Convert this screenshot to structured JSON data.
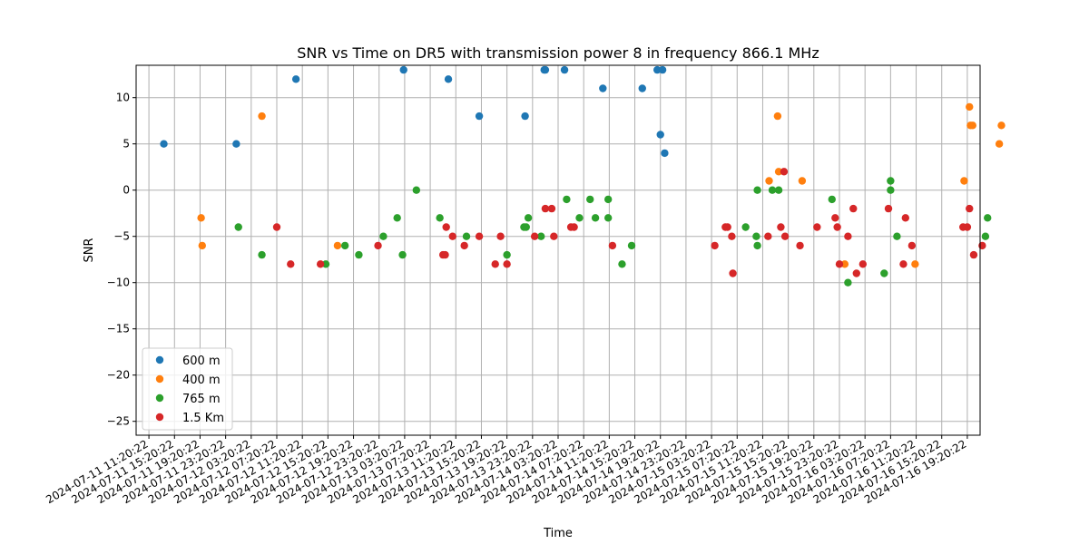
{
  "chart_data": {
    "type": "scatter",
    "title": "SNR vs Time on DR5 with transmission power 8 in frequency 866.1 MHz",
    "xlabel": "Time",
    "ylabel": "SNR",
    "ylim": [
      -26.5,
      13.5
    ],
    "yticks": [
      10,
      5,
      0,
      -5,
      -10,
      -15,
      -20,
      -25
    ],
    "xlim": [
      "2024-07-11 09:20",
      "2024-07-16 21:20"
    ],
    "xtick_labels": [
      "2024-07-11 11:20:22",
      "2024-07-11 15:20:22",
      "2024-07-11 19:20:22",
      "2024-07-11 23:20:22",
      "2024-07-12 03:20:22",
      "2024-07-12 07:20:22",
      "2024-07-12 11:20:22",
      "2024-07-12 15:20:22",
      "2024-07-12 19:20:22",
      "2024-07-12 23:20:22",
      "2024-07-13 03:20:22",
      "2024-07-13 07:20:22",
      "2024-07-13 11:20:22",
      "2024-07-13 15:20:22",
      "2024-07-13 19:20:22",
      "2024-07-13 23:20:22",
      "2024-07-14 03:20:22",
      "2024-07-14 07:20:22",
      "2024-07-14 11:20:22",
      "2024-07-14 15:20:22",
      "2024-07-14 19:20:22",
      "2024-07-14 23:20:22",
      "2024-07-15 03:20:22",
      "2024-07-15 07:20:22",
      "2024-07-15 11:20:22",
      "2024-07-15 15:20:22",
      "2024-07-15 19:20:22",
      "2024-07-15 23:20:22",
      "2024-07-16 03:20:22",
      "2024-07-16 07:20:22",
      "2024-07-16 11:20:22",
      "2024-07-16 15:20:22",
      "2024-07-16 19:20:22"
    ],
    "grid": true,
    "legend_position": "lower-left",
    "series": [
      {
        "name": "600 m",
        "color": "#1f77b4",
        "points": [
          {
            "x": "2024-07-11 13:40",
            "y": 5
          },
          {
            "x": "2024-07-12 01:00",
            "y": 5
          },
          {
            "x": "2024-07-12 10:20",
            "y": 12
          },
          {
            "x": "2024-07-12 27:10",
            "y": 13
          },
          {
            "x": "2024-07-13 10:10",
            "y": 12
          },
          {
            "x": "2024-07-13 15:00",
            "y": 8
          },
          {
            "x": "2024-07-13 22:10",
            "y": 8
          },
          {
            "x": "2024-07-14 01:10",
            "y": 13
          },
          {
            "x": "2024-07-14 01:20",
            "y": 13
          },
          {
            "x": "2024-07-14 04:20",
            "y": 13
          },
          {
            "x": "2024-07-14 10:20",
            "y": 11
          },
          {
            "x": "2024-07-14 16:30",
            "y": 11
          },
          {
            "x": "2024-07-14 18:50",
            "y": 13
          },
          {
            "x": "2024-07-14 19:40",
            "y": 13
          },
          {
            "x": "2024-07-14 19:20",
            "y": 6
          },
          {
            "x": "2024-07-14 20:00",
            "y": 4
          }
        ]
      },
      {
        "name": "400 m",
        "color": "#ff7f0e",
        "points": [
          {
            "x": "2024-07-11 19:30",
            "y": -3
          },
          {
            "x": "2024-07-11 19:40",
            "y": -6
          },
          {
            "x": "2024-07-12 05:00",
            "y": 8
          },
          {
            "x": "2024-07-12 16:50",
            "y": -6
          },
          {
            "x": "2024-07-15 12:20",
            "y": 1
          },
          {
            "x": "2024-07-15 13:40",
            "y": 8
          },
          {
            "x": "2024-07-15 13:50",
            "y": 2
          },
          {
            "x": "2024-07-15 17:30",
            "y": 1
          },
          {
            "x": "2024-07-16 00:10",
            "y": -8
          },
          {
            "x": "2024-07-16 11:10",
            "y": -8
          },
          {
            "x": "2024-07-16 18:50",
            "y": 1
          },
          {
            "x": "2024-07-16 19:50",
            "y": 7
          },
          {
            "x": "2024-07-16 19:40",
            "y": 9
          },
          {
            "x": "2024-07-16 20:10",
            "y": 7
          },
          {
            "x": "2024-07-17 00:20",
            "y": 5
          },
          {
            "x": "2024-07-17 00:40",
            "y": 7
          }
        ]
      },
      {
        "name": "765 m",
        "color": "#2ca02c",
        "points": [
          {
            "x": "2024-07-12 01:20",
            "y": -4
          },
          {
            "x": "2024-07-12 05:00",
            "y": -7
          },
          {
            "x": "2024-07-12 15:00",
            "y": -8
          },
          {
            "x": "2024-07-12 18:00",
            "y": -6
          },
          {
            "x": "2024-07-12 20:10",
            "y": -7
          },
          {
            "x": "2024-07-13 00:00",
            "y": -5
          },
          {
            "x": "2024-07-13 02:10",
            "y": -3
          },
          {
            "x": "2024-07-13 03:00",
            "y": -7
          },
          {
            "x": "2024-07-13 05:10",
            "y": 0
          },
          {
            "x": "2024-07-13 08:50",
            "y": -3
          },
          {
            "x": "2024-07-13 13:00",
            "y": -5
          },
          {
            "x": "2024-07-13 19:20",
            "y": -7
          },
          {
            "x": "2024-07-13 22:00",
            "y": -4
          },
          {
            "x": "2024-07-13 22:20",
            "y": -4
          },
          {
            "x": "2024-07-13 22:40",
            "y": -3
          },
          {
            "x": "2024-07-14 00:40",
            "y": -5
          },
          {
            "x": "2024-07-14 04:40",
            "y": -1
          },
          {
            "x": "2024-07-14 06:40",
            "y": -3
          },
          {
            "x": "2024-07-14 08:20",
            "y": -1
          },
          {
            "x": "2024-07-14 09:10",
            "y": -3
          },
          {
            "x": "2024-07-14 11:10",
            "y": -1
          },
          {
            "x": "2024-07-14 11:10",
            "y": -3
          },
          {
            "x": "2024-07-14 13:20",
            "y": -8
          },
          {
            "x": "2024-07-14 14:50",
            "y": -6
          },
          {
            "x": "2024-07-15 08:40",
            "y": -4
          },
          {
            "x": "2024-07-15 10:30",
            "y": 0
          },
          {
            "x": "2024-07-15 10:20",
            "y": -5
          },
          {
            "x": "2024-07-15 10:30",
            "y": -6
          },
          {
            "x": "2024-07-15 12:50",
            "y": 0
          },
          {
            "x": "2024-07-15 13:50",
            "y": 0
          },
          {
            "x": "2024-07-15 22:10",
            "y": -1
          },
          {
            "x": "2024-07-16 00:40",
            "y": -10
          },
          {
            "x": "2024-07-16 06:20",
            "y": -9
          },
          {
            "x": "2024-07-16 07:20",
            "y": 1
          },
          {
            "x": "2024-07-16 07:20",
            "y": 0
          },
          {
            "x": "2024-07-16 08:20",
            "y": -5
          },
          {
            "x": "2024-07-16 22:10",
            "y": -5
          },
          {
            "x": "2024-07-16 22:30",
            "y": -3
          }
        ]
      },
      {
        "name": "1.5 Km",
        "color": "#d62728",
        "points": [
          {
            "x": "2024-07-12 07:20",
            "y": -4
          },
          {
            "x": "2024-07-12 09:30",
            "y": -8
          },
          {
            "x": "2024-07-12 14:10",
            "y": -8
          },
          {
            "x": "2024-07-12 23:10",
            "y": -6
          },
          {
            "x": "2024-07-13 09:20",
            "y": -7
          },
          {
            "x": "2024-07-13 09:50",
            "y": -4
          },
          {
            "x": "2024-07-13 09:40",
            "y": -7
          },
          {
            "x": "2024-07-13 10:50",
            "y": -5
          },
          {
            "x": "2024-07-13 12:40",
            "y": -6
          },
          {
            "x": "2024-07-13 15:00",
            "y": -5
          },
          {
            "x": "2024-07-13 17:30",
            "y": -8
          },
          {
            "x": "2024-07-13 18:20",
            "y": -5
          },
          {
            "x": "2024-07-13 19:20",
            "y": -8
          },
          {
            "x": "2024-07-13 23:40",
            "y": -5
          },
          {
            "x": "2024-07-14 01:20",
            "y": -2
          },
          {
            "x": "2024-07-14 02:20",
            "y": -2
          },
          {
            "x": "2024-07-14 02:40",
            "y": -5
          },
          {
            "x": "2024-07-14 05:20",
            "y": -4
          },
          {
            "x": "2024-07-14 05:50",
            "y": -4
          },
          {
            "x": "2024-07-14 11:50",
            "y": -6
          },
          {
            "x": "2024-07-15 03:50",
            "y": -6
          },
          {
            "x": "2024-07-15 05:30",
            "y": -4
          },
          {
            "x": "2024-07-15 05:50",
            "y": -4
          },
          {
            "x": "2024-07-15 06:30",
            "y": -5
          },
          {
            "x": "2024-07-15 06:40",
            "y": -9
          },
          {
            "x": "2024-07-15 12:10",
            "y": -5
          },
          {
            "x": "2024-07-15 14:10",
            "y": -4
          },
          {
            "x": "2024-07-15 14:40",
            "y": 2
          },
          {
            "x": "2024-07-15 14:50",
            "y": -5
          },
          {
            "x": "2024-07-15 17:10",
            "y": -6
          },
          {
            "x": "2024-07-15 19:50",
            "y": -4
          },
          {
            "x": "2024-07-15 22:40",
            "y": -3
          },
          {
            "x": "2024-07-15 23:00",
            "y": -4
          },
          {
            "x": "2024-07-15 23:20",
            "y": -8
          },
          {
            "x": "2024-07-16 00:40",
            "y": -5
          },
          {
            "x": "2024-07-16 01:30",
            "y": -2
          },
          {
            "x": "2024-07-16 02:00",
            "y": -9
          },
          {
            "x": "2024-07-16 03:00",
            "y": -8
          },
          {
            "x": "2024-07-16 07:00",
            "y": -2
          },
          {
            "x": "2024-07-16 09:20",
            "y": -8
          },
          {
            "x": "2024-07-16 09:40",
            "y": -3
          },
          {
            "x": "2024-07-16 10:40",
            "y": -6
          },
          {
            "x": "2024-07-16 18:40",
            "y": -4
          },
          {
            "x": "2024-07-16 19:20",
            "y": -4
          },
          {
            "x": "2024-07-16 19:40",
            "y": -2
          },
          {
            "x": "2024-07-16 20:20",
            "y": -7
          },
          {
            "x": "2024-07-16 21:40",
            "y": -6
          }
        ]
      }
    ]
  }
}
